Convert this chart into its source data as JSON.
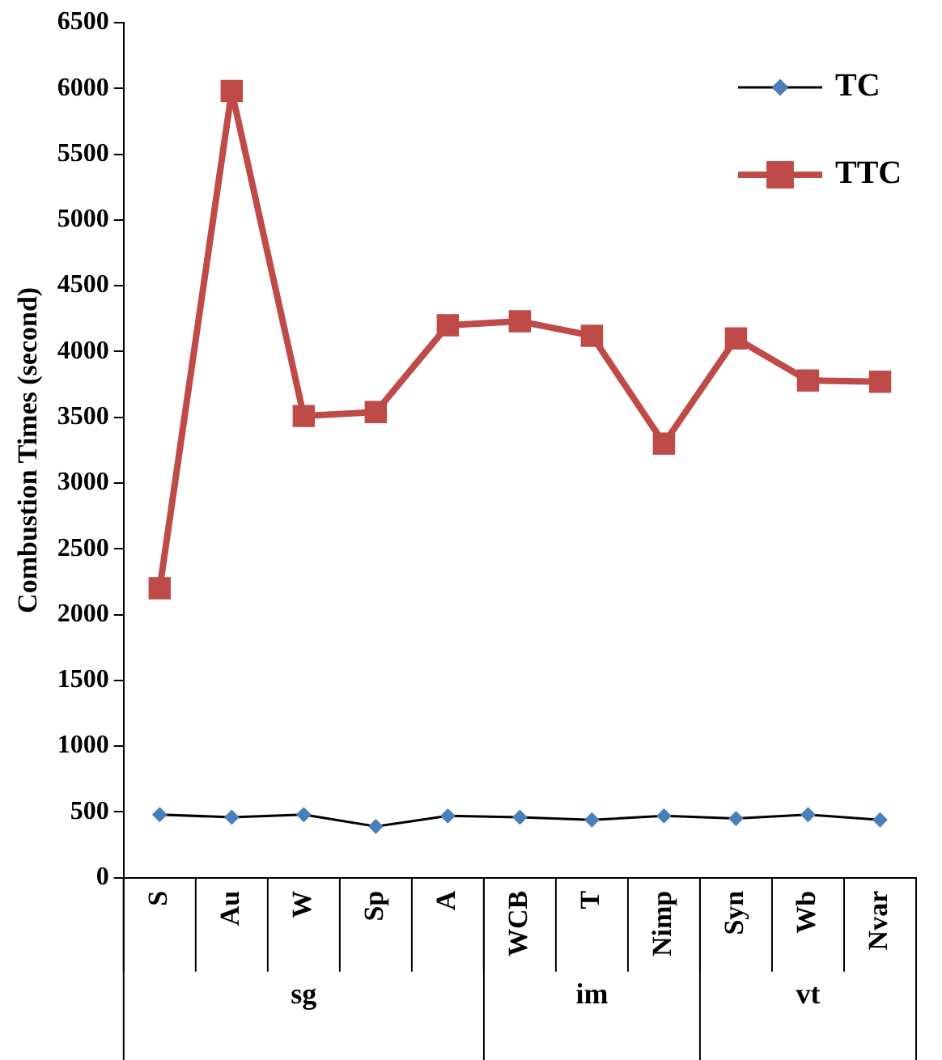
{
  "chart_data": {
    "type": "line",
    "ylabel": "Combustion Times (second)",
    "categories": [
      "S",
      "Au",
      "W",
      "Sp",
      "A",
      "WCB",
      "T",
      "Nimp",
      "Syn",
      "Wb",
      "Nvar"
    ],
    "series": [
      {
        "name": "TC",
        "color": "#4a7ebb",
        "marker": "diamond",
        "values": [
          480,
          460,
          480,
          390,
          470,
          460,
          440,
          470,
          450,
          480,
          440
        ]
      },
      {
        "name": "TTC",
        "color": "#be4b48",
        "marker": "square",
        "values": [
          2200,
          5980,
          3510,
          3540,
          4200,
          4230,
          4120,
          3300,
          4100,
          3780,
          3770
        ]
      }
    ],
    "annotations": [
      "sg",
      "im",
      "vt"
    ],
    "ylim": [
      0,
      6500
    ],
    "yticks": [
      0,
      500,
      1000,
      1500,
      2000,
      2500,
      3000,
      3500,
      4000,
      4500,
      5000,
      5500,
      6000,
      6500
    ],
    "grid": false,
    "legend": "top right"
  }
}
